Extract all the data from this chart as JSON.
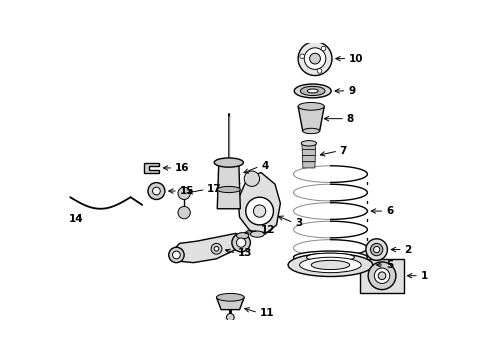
{
  "bg_color": "#ffffff",
  "line_color": "#000000",
  "fig_w": 4.9,
  "fig_h": 3.6,
  "dpi": 100,
  "parts_font": 7.5
}
